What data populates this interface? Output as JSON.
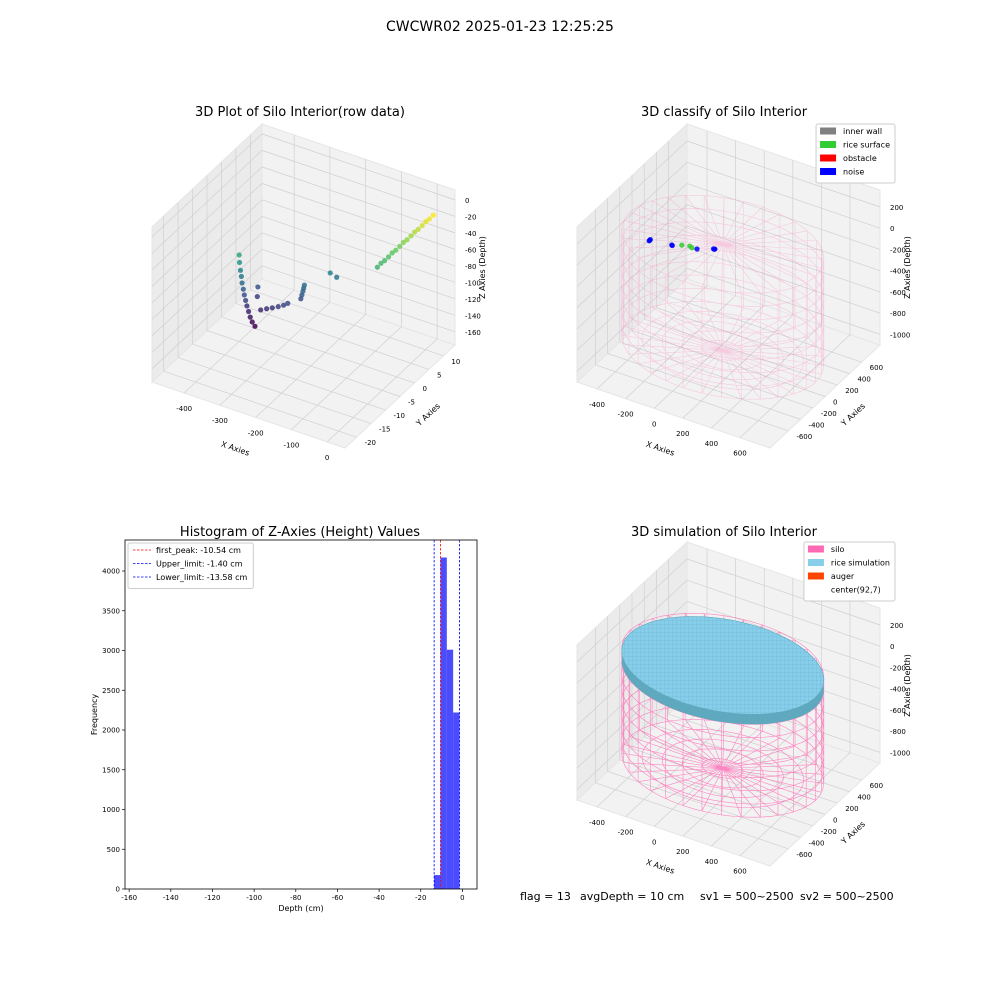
{
  "title": "CWCWR02 2025-01-23 12:25:25",
  "chart_data": [
    {
      "type": "scatter3d",
      "title": "3D Plot of Silo Interior(row data)",
      "xlabel": "X Axies",
      "ylabel": "Y Axies",
      "zlabel": "Z Axies (Depth)",
      "colormap": "viridis",
      "x": [
        -400,
        -399,
        -398,
        -397,
        -396,
        -394,
        -392,
        -390,
        -388,
        -385,
        -382,
        -378,
        -372,
        -360,
        -345,
        -330,
        -315,
        -300,
        -290,
        -380,
        -380,
        -268,
        -265,
        -262,
        -260,
        -258,
        -210,
        -200,
        -70,
        -64,
        -57,
        -50,
        -44,
        -37,
        -30,
        -24,
        -17,
        -10,
        -4,
        3,
        10,
        16,
        23,
        30
      ],
      "y": [
        -5,
        -5,
        -4.8,
        -4.6,
        -4.5,
        -4.3,
        -4.2,
        -4,
        -3.8,
        -3.6,
        -3.4,
        -3.2,
        -3,
        -2.5,
        -2.3,
        -2.2,
        -2,
        -2,
        -1.8,
        -1,
        -1.2,
        0,
        0,
        0,
        0,
        0,
        3,
        4,
        2,
        2.5,
        2.9,
        3.4,
        3.9,
        4.3,
        4.8,
        5.3,
        5.7,
        6.2,
        6.7,
        7.1,
        7.6,
        8.1,
        8.5,
        9
      ],
      "z": [
        -71,
        -80,
        -90,
        -98,
        -106,
        -114,
        -121,
        -128,
        -135,
        -142,
        -149,
        -155,
        -160,
        -140,
        -137,
        -134,
        -131,
        -127,
        -124,
        -120,
        -131,
        -121,
        -116,
        -111,
        -107,
        -103,
        -91,
        -98,
        -60,
        -56,
        -53,
        -49,
        -45,
        -42,
        -38,
        -34,
        -31,
        -27,
        -23,
        -20,
        -16,
        -12,
        -9,
        -5
      ],
      "xlim": [
        -490,
        50
      ],
      "ylim": [
        -24,
        14
      ],
      "zlim": [
        -176,
        12
      ],
      "xticks": [
        -400,
        -300,
        -200,
        -100,
        0
      ],
      "yticks": [
        -20,
        -15,
        -10,
        -5,
        0,
        5,
        10
      ],
      "zticks": [
        0,
        -20,
        -40,
        -60,
        -80,
        -100,
        -120,
        -140,
        -160
      ],
      "grid": true
    },
    {
      "type": "scatter3d",
      "title": "3D classify of Silo Interior",
      "xlabel": "X Axies",
      "ylabel": "Y Axies",
      "zlabel": "Z Axies (Depth)",
      "legend": "upper right",
      "silo": {
        "center": [
          92,
          7
        ],
        "radius": 650,
        "bottom": -1000,
        "top": 0,
        "color": "hotpink"
      },
      "series": [
        {
          "name": "inner wall",
          "color": "gray"
        },
        {
          "name": "rice surface",
          "color": "limegreen",
          "x": [
            -200,
            -140,
            -120
          ],
          "y": [
            20,
            10,
            0
          ],
          "z": [
            -150,
            -126,
            -128
          ]
        },
        {
          "name": "obstacle",
          "color": "red"
        },
        {
          "name": "noise",
          "color": "blue",
          "x": [
            -420,
            -416,
            -412,
            -262,
            -258,
            -85,
            30,
            36,
            40
          ],
          "y": [
            0,
            0,
            0,
            0,
            0,
            0,
            0,
            0,
            0
          ],
          "z": [
            -200,
            -192,
            -185,
            -166,
            -170,
            -123,
            -68,
            -70,
            -66
          ]
        }
      ],
      "xlim": [
        -540,
        810
      ],
      "ylim": [
        -900,
        900
      ],
      "zlim": [
        -1100,
        360
      ],
      "xticks": [
        -400,
        -200,
        0,
        200,
        400,
        600
      ],
      "yticks": [
        -600,
        -400,
        -200,
        0,
        200,
        400,
        600
      ],
      "zticks": [
        200,
        0,
        -200,
        -400,
        -600,
        -800,
        -1000
      ],
      "grid": true
    },
    {
      "type": "histogram",
      "title": "Histogram of Z-Axies (Height) Values",
      "xlabel": "Depth (cm)",
      "ylabel": "Frequency",
      "color": "blue",
      "legend": "upper left",
      "bins": [
        -13.58,
        -10.54,
        -7.49,
        -4.45,
        -1.4
      ],
      "values": [
        175,
        4170,
        3010,
        2220
      ],
      "lines": [
        {
          "name": "first_peak: -10.54 cm",
          "value": -10.54,
          "color": "red"
        },
        {
          "name": "Upper_limit: -1.40 cm",
          "value": -1.4,
          "color": "blue"
        },
        {
          "name": "Lower_limit: -13.58 cm",
          "value": -13.58,
          "color": "blue"
        }
      ],
      "xlim": [
        -162,
        7
      ],
      "ylim": [
        0,
        4390
      ],
      "xticks": [
        -160,
        -140,
        -120,
        -100,
        -80,
        -60,
        -40,
        -20,
        0
      ],
      "yticks": [
        0,
        500,
        1000,
        1500,
        2000,
        2500,
        3000,
        3500,
        4000
      ]
    },
    {
      "type": "scatter3d",
      "title": "3D simulation of Silo Interior",
      "xlabel": "X Axies",
      "ylabel": "Y Axies",
      "zlabel": "Z Axies (Depth)",
      "legend": "upper right",
      "silo": {
        "center": [
          92,
          7
        ],
        "radius": 650,
        "bottom": -1000,
        "top": 0,
        "color": "hotpink"
      },
      "series": [
        {
          "name": "silo",
          "color": "hotpink"
        },
        {
          "name": "rice simulation",
          "color": "skyblue",
          "level": -30
        },
        {
          "name": "auger",
          "color": "orangered"
        },
        {
          "name": "center(92,7)",
          "color": "white"
        }
      ],
      "xlim": [
        -540,
        810
      ],
      "ylim": [
        -900,
        900
      ],
      "zlim": [
        -1100,
        360
      ],
      "xticks": [
        -400,
        -200,
        0,
        200,
        400,
        600
      ],
      "yticks": [
        -600,
        -400,
        -200,
        0,
        200,
        400,
        600
      ],
      "zticks": [
        200,
        0,
        -200,
        -400,
        -600,
        -800,
        -1000
      ],
      "grid": true
    }
  ],
  "footer": [
    "flag = 13",
    "avgDepth = 10 cm",
    "sv1 = 500~2500",
    "sv2 = 500~2500"
  ]
}
